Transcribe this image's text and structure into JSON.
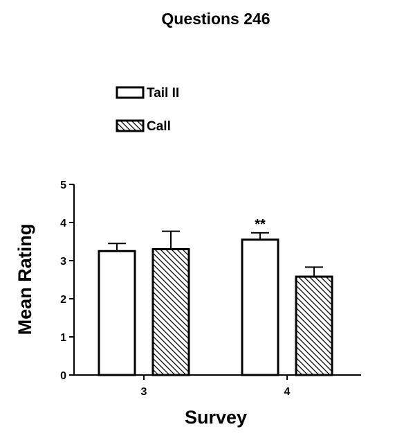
{
  "chart_data": {
    "type": "bar",
    "title": "Questions 246",
    "xlabel": "Survey",
    "ylabel": "Mean Rating",
    "categories": [
      "3",
      "4"
    ],
    "ylim": [
      0,
      5
    ],
    "yticks": [
      "0",
      "1",
      "2",
      "3",
      "4",
      "5"
    ],
    "grid": false,
    "legend_position": "top-center",
    "series": [
      {
        "name": "Tail II",
        "values": [
          3.25,
          3.55
        ],
        "errors": [
          0.2,
          0.18
        ],
        "fill": "white"
      },
      {
        "name": "Call",
        "values": [
          3.3,
          2.58
        ],
        "errors": [
          0.47,
          0.25
        ],
        "fill": "diagonal-hatch"
      }
    ],
    "annotations": [
      {
        "text": "**",
        "category": "4",
        "series": "Tail II"
      }
    ]
  }
}
